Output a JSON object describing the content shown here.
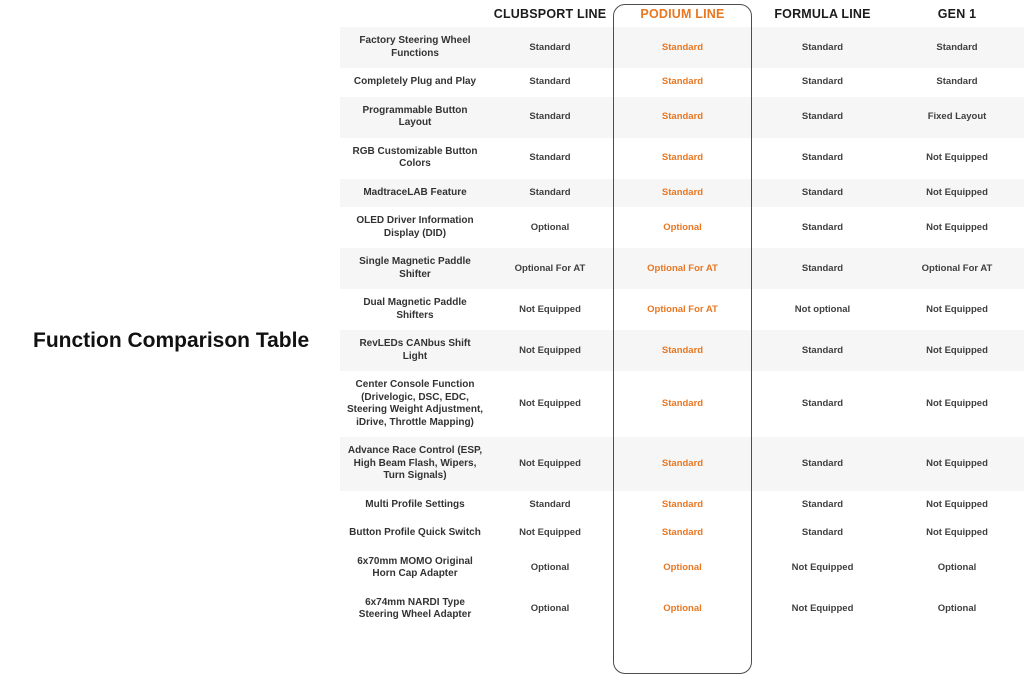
{
  "title": "Function Comparison Table",
  "accent_color": "#e87722",
  "row_stripe_color": "#f6f6f6",
  "chart_data": {
    "type": "table",
    "title": "Function Comparison Table",
    "columns": [
      "CLUBSPORT LINE",
      "PODIUM LINE",
      "FORMULA LINE",
      "GEN 1"
    ],
    "highlighted_column": "PODIUM LINE",
    "rows": [
      {
        "feature": "Factory Steering Wheel Functions",
        "values": [
          "Standard",
          "Standard",
          "Standard",
          "Standard"
        ]
      },
      {
        "feature": "Completely Plug and Play",
        "values": [
          "Standard",
          "Standard",
          "Standard",
          "Standard"
        ]
      },
      {
        "feature": "Programmable Button Layout",
        "values": [
          "Standard",
          "Standard",
          "Standard",
          "Fixed Layout"
        ]
      },
      {
        "feature": "RGB Customizable Button Colors",
        "values": [
          "Standard",
          "Standard",
          "Standard",
          "Not Equipped"
        ]
      },
      {
        "feature": "MadtraceLAB Feature",
        "values": [
          "Standard",
          "Standard",
          "Standard",
          "Not Equipped"
        ]
      },
      {
        "feature": "OLED Driver Information Display (DID)",
        "values": [
          "Optional",
          "Optional",
          "Standard",
          "Not Equipped"
        ]
      },
      {
        "feature": "Single Magnetic Paddle Shifter",
        "values": [
          "Optional For AT",
          "Optional For AT",
          "Standard",
          "Optional For AT"
        ]
      },
      {
        "feature": "Dual Magnetic Paddle Shifters",
        "values": [
          "Not Equipped",
          "Optional For AT",
          "Not optional",
          "Not Equipped"
        ]
      },
      {
        "feature": "RevLEDs CANbus Shift Light",
        "values": [
          "Not Equipped",
          "Standard",
          "Standard",
          "Not Equipped"
        ]
      },
      {
        "feature": "Center Console Function (Drivelogic, DSC, EDC, Steering Weight Adjustment, iDrive, Throttle Mapping)",
        "values": [
          "Not Equipped",
          "Standard",
          "Standard",
          "Not Equipped"
        ]
      },
      {
        "feature": "Advance Race Control (ESP, High Beam Flash, Wipers, Turn Signals)",
        "values": [
          "Not Equipped",
          "Standard",
          "Standard",
          "Not Equipped"
        ]
      },
      {
        "feature": "Multi Profile Settings",
        "values": [
          "Standard",
          "Standard",
          "Standard",
          "Not Equipped"
        ]
      },
      {
        "feature": "Button Profile Quick Switch",
        "values": [
          "Not Equipped",
          "Standard",
          "Standard",
          "Not Equipped"
        ]
      },
      {
        "feature": "6x70mm MOMO Original Horn Cap Adapter",
        "values": [
          "Optional",
          "Optional",
          "Not Equipped",
          "Optional"
        ]
      },
      {
        "feature": "6x74mm NARDI Type Steering Wheel Adapter",
        "values": [
          "Optional",
          "Optional",
          "Not Equipped",
          "Optional"
        ]
      }
    ]
  }
}
